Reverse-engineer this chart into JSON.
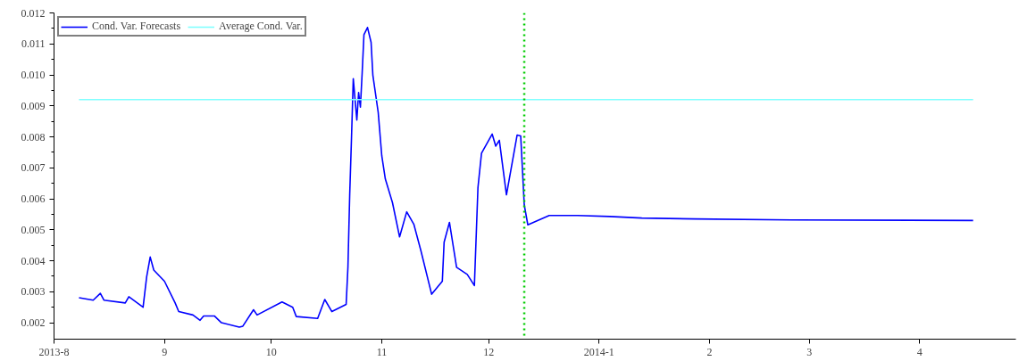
{
  "chart_data": {
    "type": "line",
    "legend": "top left",
    "marker": "none",
    "line_style": "solid",
    "grid": false,
    "xlim": [
      "2013-08-01",
      "2014-04-28"
    ],
    "xticks": [
      {
        "value": "2013-08-01",
        "label": "2013-8"
      },
      {
        "value": "2013-09-01",
        "label": "9"
      },
      {
        "value": "2013-10-01",
        "label": "10"
      },
      {
        "value": "2013-11-01",
        "label": "11"
      },
      {
        "value": "2013-12-01",
        "label": "12"
      },
      {
        "value": "2014-01-01",
        "label": "2014-1"
      },
      {
        "value": "2014-02-01",
        "label": "2"
      },
      {
        "value": "2014-03-01",
        "label": "3"
      },
      {
        "value": "2014-04-01",
        "label": "4"
      }
    ],
    "ylim": [
      0.00147,
      0.012
    ],
    "yticks": [
      {
        "value": 0.002,
        "label": "0.002"
      },
      {
        "value": 0.003,
        "label": "0.003"
      },
      {
        "value": 0.004,
        "label": "0.004"
      },
      {
        "value": 0.005,
        "label": "0.005"
      },
      {
        "value": 0.006,
        "label": "0.006"
      },
      {
        "value": 0.007,
        "label": "0.007"
      },
      {
        "value": 0.008,
        "label": "0.008"
      },
      {
        "value": 0.009,
        "label": "0.009"
      },
      {
        "value": 0.01,
        "label": "0.010"
      },
      {
        "value": 0.011,
        "label": "0.011"
      },
      {
        "value": 0.012,
        "label": "0.012"
      }
    ],
    "ref_lines": [
      {
        "axis": "x",
        "value": "2013-12-11",
        "color": "#00cc00",
        "line_style": "dotted"
      }
    ],
    "series": [
      {
        "name": "Cond. Var. Forecasts",
        "color": "#0000ff",
        "x": [
          "2013-08-08",
          "2013-08-12",
          "2013-08-14",
          "2013-08-15",
          "2013-08-21",
          "2013-08-22",
          "2013-08-26",
          "2013-08-27",
          "2013-08-28",
          "2013-08-29",
          "2013-09-01",
          "2013-09-04",
          "2013-09-05",
          "2013-09-09",
          "2013-09-11",
          "2013-09-12",
          "2013-09-15",
          "2013-09-17",
          "2013-09-22",
          "2013-09-23",
          "2013-09-26",
          "2013-09-27",
          "2013-10-04",
          "2013-10-07",
          "2013-10-08",
          "2013-10-14",
          "2013-10-16",
          "2013-10-18",
          "2013-10-22",
          "2013-10-22T12:00",
          "2013-10-23",
          "2013-10-23T12:00",
          "2013-10-24",
          "2013-10-25",
          "2013-10-25T12:00",
          "2013-10-26",
          "2013-10-26T12:00",
          "2013-10-27",
          "2013-10-28",
          "2013-10-29",
          "2013-10-29T12:00",
          "2013-10-31",
          "2013-11-01",
          "2013-11-02",
          "2013-11-04",
          "2013-11-06",
          "2013-11-08",
          "2013-11-10",
          "2013-11-12",
          "2013-11-15",
          "2013-11-18",
          "2013-11-18T12:00",
          "2013-11-20",
          "2013-11-22",
          "2013-11-25",
          "2013-11-27",
          "2013-11-28",
          "2013-11-29",
          "2013-12-02",
          "2013-12-03",
          "2013-12-04",
          "2013-12-06",
          "2013-12-09",
          "2013-12-10",
          "2013-12-11",
          "2013-12-12",
          "2013-12-18",
          "2013-12-26",
          "2014-01-04",
          "2014-01-13",
          "2014-01-28",
          "2014-02-24",
          "2014-04-16"
        ],
        "values": [
          0.00281,
          0.00273,
          0.00295,
          0.00273,
          0.00264,
          0.00284,
          0.0025,
          0.00348,
          0.00412,
          0.0037,
          0.00334,
          0.00264,
          0.00236,
          0.00225,
          0.00208,
          0.00222,
          0.00222,
          0.002,
          0.00186,
          0.00189,
          0.00242,
          0.00225,
          0.00267,
          0.0025,
          0.0022,
          0.00214,
          0.00275,
          0.00236,
          0.00259,
          0.00379,
          0.00613,
          0.00795,
          0.00988,
          0.00854,
          0.00943,
          0.00896,
          0.01007,
          0.0113,
          0.01153,
          0.01105,
          0.00999,
          0.00879,
          0.00739,
          0.00664,
          0.00588,
          0.00477,
          0.00558,
          0.00518,
          0.00432,
          0.00292,
          0.00334,
          0.0046,
          0.00524,
          0.00379,
          0.00356,
          0.0032,
          0.00636,
          0.00747,
          0.00809,
          0.0077,
          0.00789,
          0.00613,
          0.00806,
          0.00803,
          0.0058,
          0.00516,
          0.00546,
          0.00546,
          0.00543,
          0.00538,
          0.00535,
          0.00532,
          0.0053
        ]
      },
      {
        "name": "Average Cond. Var.",
        "color": "#80ffff",
        "x": [
          "2013-08-08",
          "2014-04-16"
        ],
        "values": [
          0.0092,
          0.0092
        ]
      }
    ]
  }
}
